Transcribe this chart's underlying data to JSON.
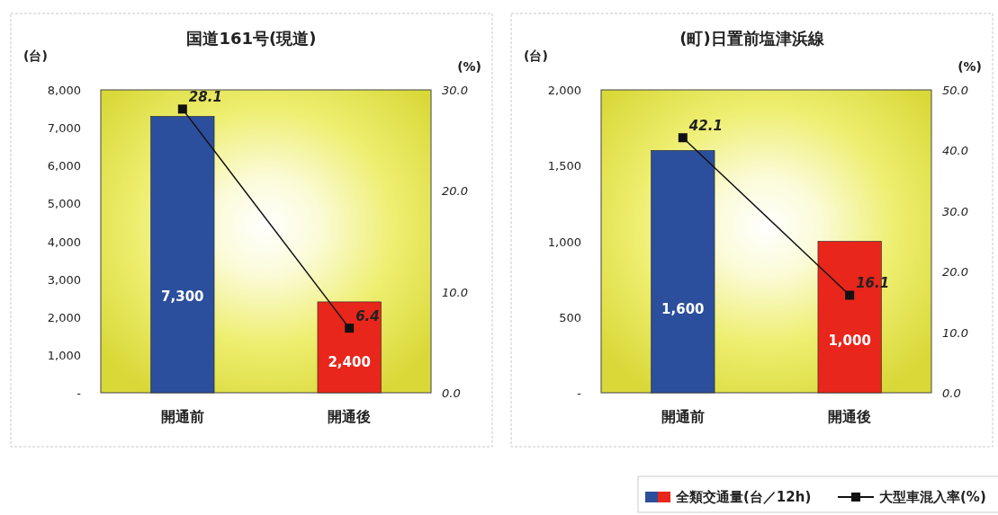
{
  "chart_data": [
    {
      "type": "bar",
      "title": "国道161号(現道)",
      "ylabel": "(台)",
      "y2label": "(%)",
      "categories": [
        "開通前",
        "開通後"
      ],
      "series": [
        {
          "colors": [
            "#2b4f9c",
            "#e8261c"
          ],
          "values": [
            7300,
            2400
          ],
          "value_labels": [
            "7,300",
            "2,400"
          ]
        },
        {
          "type": "line",
          "axis": "y2",
          "color": "#111111",
          "values": [
            28.1,
            6.4
          ]
        }
      ],
      "ylim": [
        0,
        8000
      ],
      "yticks": [
        {
          "value": 0,
          "label": "-"
        },
        {
          "value": 1000,
          "label": "1,000"
        },
        {
          "value": 2000,
          "label": "2,000"
        },
        {
          "value": 3000,
          "label": "3,000"
        },
        {
          "value": 4000,
          "label": "4,000"
        },
        {
          "value": 5000,
          "label": "5,000"
        },
        {
          "value": 6000,
          "label": "6,000"
        },
        {
          "value": 7000,
          "label": "7,000"
        },
        {
          "value": 8000,
          "label": "8,000"
        }
      ],
      "y2lim": [
        0,
        30
      ],
      "y2ticks": [
        {
          "value": 0,
          "label": "0.0"
        },
        {
          "value": 10,
          "label": "10.0"
        },
        {
          "value": 20,
          "label": "20.0"
        },
        {
          "value": 30,
          "label": "30.0"
        }
      ],
      "data_labels": true,
      "marker": "square",
      "legend": false
    },
    {
      "type": "bar",
      "title": "(町)日置前塩津浜線",
      "ylabel": "(台)",
      "y2label": "(%)",
      "categories": [
        "開通前",
        "開通後"
      ],
      "series": [
        {
          "name": "全類交通量(台／12h)",
          "colors": [
            "#2b4f9c",
            "#e8261c"
          ],
          "values": [
            1600,
            1000
          ],
          "value_labels": [
            "1,600",
            "1,000"
          ]
        },
        {
          "type": "line",
          "axis": "y2",
          "name": "大型車混入率(%)",
          "color": "#111111",
          "values": [
            42.1,
            16.1
          ]
        }
      ],
      "ylim": [
        0,
        2000
      ],
      "yticks": [
        {
          "value": 0,
          "label": "-"
        },
        {
          "value": 500,
          "label": "500"
        },
        {
          "value": 1000,
          "label": "1,000"
        },
        {
          "value": 1500,
          "label": "1,500"
        },
        {
          "value": 2000,
          "label": "2,000"
        }
      ],
      "y2lim": [
        0,
        50
      ],
      "y2ticks": [
        {
          "value": 0,
          "label": "0.0"
        },
        {
          "value": 10,
          "label": "10.0"
        },
        {
          "value": 20,
          "label": "20.0"
        },
        {
          "value": 30,
          "label": "30.0"
        },
        {
          "value": 40,
          "label": "40.0"
        },
        {
          "value": 50,
          "label": "50.0"
        }
      ],
      "data_labels": true,
      "marker": "square",
      "legend": "bottom right"
    }
  ]
}
